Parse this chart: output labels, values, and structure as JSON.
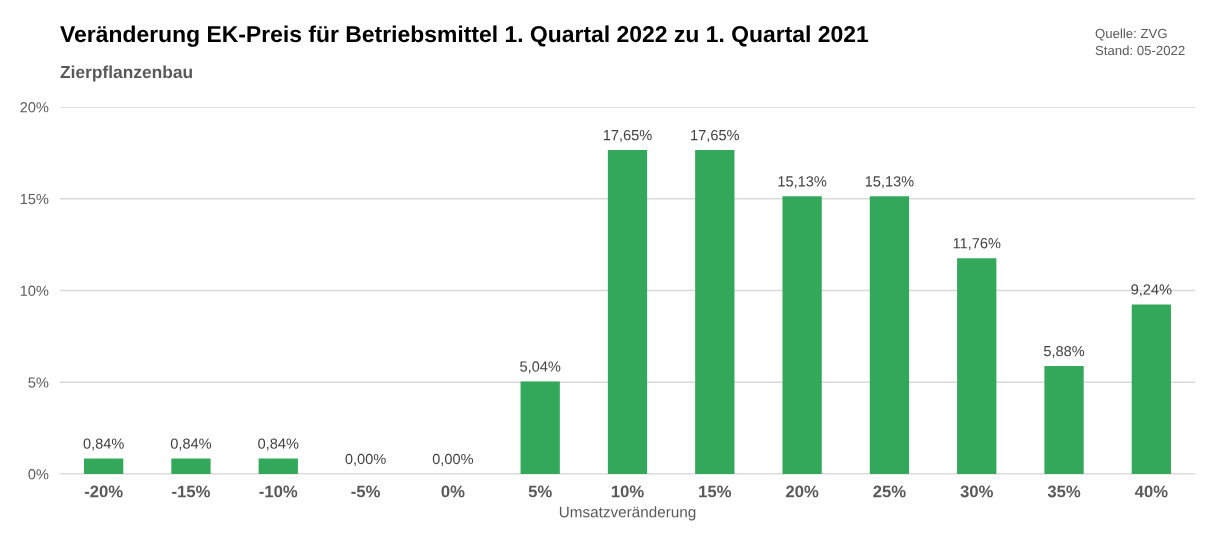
{
  "chart_data": {
    "type": "bar",
    "title": "Veränderung EK-Preis für Betriebsmittel 1. Quartal 2022 zu 1. Quartal 2021",
    "subtitle": "Zierpflanzenbau",
    "xlabel": "Umsatzveränderung",
    "categories": [
      "-20%",
      "-15%",
      "-10%",
      "-5%",
      "0%",
      "5%",
      "10%",
      "15%",
      "20%",
      "25%",
      "30%",
      "35%",
      "40%"
    ],
    "values": [
      0.84,
      0.84,
      0.84,
      0.0,
      0.0,
      5.04,
      17.65,
      17.65,
      15.13,
      15.13,
      11.76,
      5.88,
      9.24
    ],
    "value_labels": [
      "0,84%",
      "0,84%",
      "0,84%",
      "0,00%",
      "0,00%",
      "5,04%",
      "17,65%",
      "17,65%",
      "15,13%",
      "15,13%",
      "11,76%",
      "5,88%",
      "9,24%"
    ],
    "color": "#34a85a",
    "ylim": [
      0,
      20
    ],
    "yticks": [
      {
        "value": 0,
        "label": "0%"
      },
      {
        "value": 5,
        "label": "5%"
      },
      {
        "value": 10,
        "label": "10%"
      },
      {
        "value": 15,
        "label": "15%"
      },
      {
        "value": 20,
        "label": "20%"
      }
    ],
    "grid": "y",
    "annotations": [
      "Quelle: ZVG",
      "Stand: 05-2022"
    ]
  }
}
